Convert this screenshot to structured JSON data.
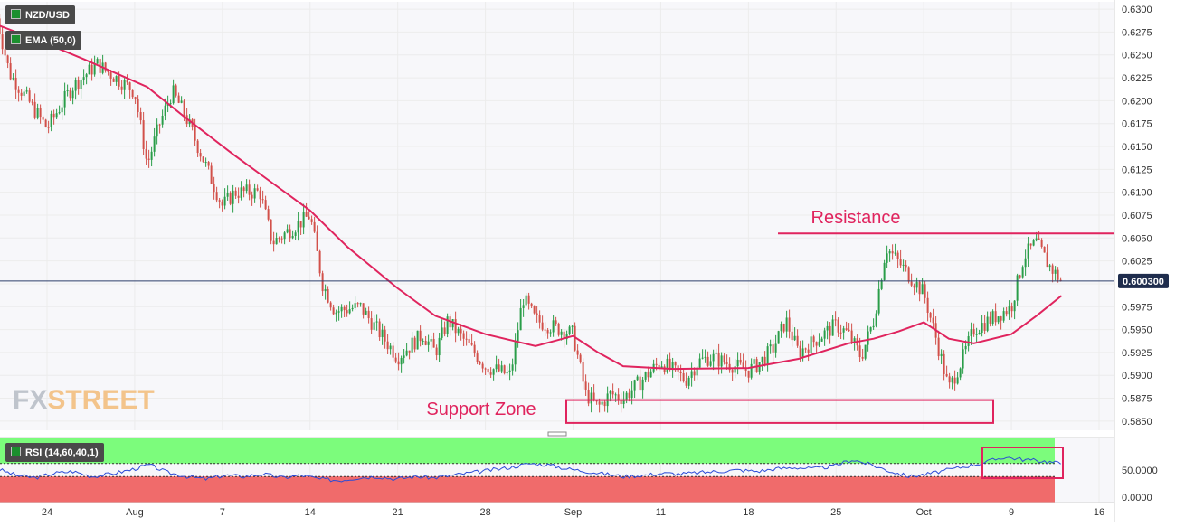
{
  "symbol_badge": "NZD/USD",
  "ema_badge": "EMA (50,0)",
  "rsi_badge": "RSI (14,60,40,1)",
  "watermark": "FXSTREET",
  "current_price": "0.600300",
  "colors": {
    "up": "#2a9d49",
    "down": "#d2504a",
    "ema": "#e0245e",
    "annotation": "#e0245e",
    "rsi_line": "#2b4bd6",
    "rsi_upper_zone": "#7cfc7c",
    "rsi_lower_zone": "#f06b6b",
    "grid": "#ececec",
    "price_line": "#2c3e6b"
  },
  "annotations": {
    "resistance_label": "Resistance",
    "support_label": "Support Zone",
    "resistance_level": 0.6055,
    "support_zone": [
      0.5848,
      0.5873
    ]
  },
  "chart_data": [
    {
      "type": "candlestick",
      "series": [
        {
          "name": "NZD/USD",
          "kind": "ohlc"
        },
        {
          "name": "EMA (50,0)",
          "kind": "line"
        }
      ],
      "price_ticks": [
        "0.6300",
        "0.6275",
        "0.6250",
        "0.6225",
        "0.6200",
        "0.6175",
        "0.6150",
        "0.6125",
        "0.6100",
        "0.6075",
        "0.6050",
        "0.6025",
        "0.6000",
        "0.5975",
        "0.5950",
        "0.5925",
        "0.5900",
        "0.5875",
        "0.5850"
      ],
      "ylim": [
        0.584,
        0.6308
      ],
      "date_ticks": [
        "24",
        "Aug",
        "7",
        "14",
        "21",
        "28",
        "Sep",
        "11",
        "18",
        "25",
        "Oct",
        "9",
        "16"
      ],
      "last_price": 0.6003,
      "close_path": [
        {
          "date": "Jul 20",
          "close": 0.629
        },
        {
          "date": "Jul 21",
          "close": 0.623
        },
        {
          "date": "Jul 24",
          "close": 0.617
        },
        {
          "date": "Jul 26",
          "close": 0.6215
        },
        {
          "date": "Jul 28",
          "close": 0.624
        },
        {
          "date": "Jul 31",
          "close": 0.621
        },
        {
          "date": "Aug 1",
          "close": 0.613
        },
        {
          "date": "Aug 2",
          "close": 0.6175
        },
        {
          "date": "Aug 3",
          "close": 0.621
        },
        {
          "date": "Aug 4",
          "close": 0.6185
        },
        {
          "date": "Aug 7",
          "close": 0.6085
        },
        {
          "date": "Aug 8",
          "close": 0.61
        },
        {
          "date": "Aug 10",
          "close": 0.61
        },
        {
          "date": "Aug 11",
          "close": 0.6045
        },
        {
          "date": "Aug 14",
          "close": 0.6075
        },
        {
          "date": "Aug 15",
          "close": 0.6
        },
        {
          "date": "Aug 16",
          "close": 0.597
        },
        {
          "date": "Aug 18",
          "close": 0.5975
        },
        {
          "date": "Aug 21",
          "close": 0.592
        },
        {
          "date": "Aug 23",
          "close": 0.5945
        },
        {
          "date": "Aug 24",
          "close": 0.5925
        },
        {
          "date": "Aug 25",
          "close": 0.596
        },
        {
          "date": "Aug 28",
          "close": 0.591
        },
        {
          "date": "Aug 30",
          "close": 0.59
        },
        {
          "date": "Aug 31",
          "close": 0.5985
        },
        {
          "date": "Sep 1",
          "close": 0.596
        },
        {
          "date": "Sep 4",
          "close": 0.5945
        },
        {
          "date": "Sep 5",
          "close": 0.588
        },
        {
          "date": "Sep 6",
          "close": 0.5865
        },
        {
          "date": "Sep 7",
          "close": 0.588
        },
        {
          "date": "Sep 8",
          "close": 0.5875
        },
        {
          "date": "Sep 11",
          "close": 0.5915
        },
        {
          "date": "Sep 12",
          "close": 0.5905
        },
        {
          "date": "Sep 13",
          "close": 0.5895
        },
        {
          "date": "Sep 14",
          "close": 0.5915
        },
        {
          "date": "Sep 15",
          "close": 0.592
        },
        {
          "date": "Sep 18",
          "close": 0.5905
        },
        {
          "date": "Sep 19",
          "close": 0.5915
        },
        {
          "date": "Sep 20",
          "close": 0.593
        },
        {
          "date": "Sep 21",
          "close": 0.596
        },
        {
          "date": "Sep 22",
          "close": 0.5925
        },
        {
          "date": "Sep 25",
          "close": 0.5955
        },
        {
          "date": "Sep 26",
          "close": 0.5945
        },
        {
          "date": "Sep 27",
          "close": 0.592
        },
        {
          "date": "Sep 28",
          "close": 0.596
        },
        {
          "date": "Sep 29",
          "close": 0.604
        },
        {
          "date": "Oct 2",
          "close": 0.599
        },
        {
          "date": "Oct 3",
          "close": 0.594
        },
        {
          "date": "Oct 4",
          "close": 0.5885
        },
        {
          "date": "Oct 5",
          "close": 0.5915
        },
        {
          "date": "Oct 6",
          "close": 0.595
        },
        {
          "date": "Oct 9",
          "close": 0.5975
        },
        {
          "date": "Oct 10",
          "close": 0.603
        },
        {
          "date": "Oct 11",
          "close": 0.6045
        },
        {
          "date": "Oct 12",
          "close": 0.602
        },
        {
          "date": "Oct 13",
          "close": 0.6003
        }
      ],
      "ema_path": [
        {
          "date": "Jul 20",
          "value": 0.6283
        },
        {
          "date": "Jul 24",
          "value": 0.6262
        },
        {
          "date": "Jul 27",
          "value": 0.6245
        },
        {
          "date": "Aug 1",
          "value": 0.6215
        },
        {
          "date": "Aug 4",
          "value": 0.6182
        },
        {
          "date": "Aug 8",
          "value": 0.614
        },
        {
          "date": "Aug 11",
          "value": 0.611
        },
        {
          "date": "Aug 14",
          "value": 0.608
        },
        {
          "date": "Aug 17",
          "value": 0.604
        },
        {
          "date": "Aug 21",
          "value": 0.5995
        },
        {
          "date": "Aug 24",
          "value": 0.5965
        },
        {
          "date": "Aug 28",
          "value": 0.5945
        },
        {
          "date": "Sep 1",
          "value": 0.5932
        },
        {
          "date": "Sep 4",
          "value": 0.5943
        },
        {
          "date": "Sep 6",
          "value": 0.5925
        },
        {
          "date": "Sep 8",
          "value": 0.591
        },
        {
          "date": "Sep 12",
          "value": 0.5907
        },
        {
          "date": "Sep 18",
          "value": 0.5908
        },
        {
          "date": "Sep 22",
          "value": 0.5918
        },
        {
          "date": "Sep 26",
          "value": 0.5935
        },
        {
          "date": "Sep 28",
          "value": 0.594
        },
        {
          "date": "Sep 30",
          "value": 0.5948
        },
        {
          "date": "Oct 2",
          "value": 0.5958
        },
        {
          "date": "Oct 4",
          "value": 0.594
        },
        {
          "date": "Oct 6",
          "value": 0.5935
        },
        {
          "date": "Oct 9",
          "value": 0.5945
        },
        {
          "date": "Oct 11",
          "value": 0.5965
        },
        {
          "date": "Oct 13",
          "value": 0.5987
        }
      ]
    },
    {
      "type": "line",
      "series": [
        {
          "name": "RSI (14,60,40,1)"
        }
      ],
      "rsi_ticks": [
        "50.0000",
        "0.0000"
      ],
      "ylim": [
        0,
        100
      ],
      "zones": {
        "upper": [
          60,
          100
        ],
        "lower": [
          0,
          40
        ]
      },
      "values": [
        52,
        42,
        38,
        45,
        48,
        40,
        44,
        50,
        58,
        46,
        40,
        36,
        42,
        40,
        44,
        38,
        42,
        36,
        34,
        38,
        40,
        36,
        40,
        38,
        42,
        46,
        50,
        54,
        60,
        58,
        52,
        48,
        44,
        40,
        42,
        45,
        44,
        46,
        48,
        50,
        48,
        52,
        54,
        52,
        56,
        66,
        58,
        48,
        40,
        44,
        50,
        56,
        62,
        70,
        66,
        64,
        60
      ]
    }
  ]
}
